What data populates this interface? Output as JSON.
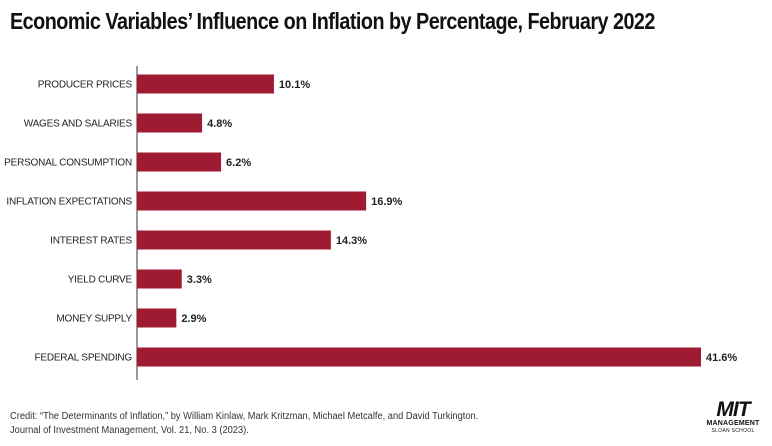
{
  "chart_data": {
    "type": "bar",
    "orientation": "horizontal",
    "title": "Economic Variables’ Influence on Inflation by Percentage, February 2022",
    "categories": [
      "PRODUCER PRICES",
      "WAGES AND SALARIES",
      "PERSONAL CONSUMPTION",
      "INFLATION EXPECTATIONS",
      "INTEREST RATES",
      "YIELD CURVE",
      "MONEY SUPPLY",
      "FEDERAL SPENDING"
    ],
    "values": [
      10.1,
      4.8,
      6.2,
      16.9,
      14.3,
      3.3,
      2.9,
      41.6
    ],
    "value_labels": [
      "10.1%",
      "4.8%",
      "6.2%",
      "16.9%",
      "14.3%",
      "3.3%",
      "2.9%",
      "41.6%"
    ],
    "unit": "%",
    "xlim": [
      0,
      41.6
    ],
    "grid": false,
    "bar_color": "#9e1b32"
  },
  "credit": {
    "line1": "Credit: “The Determinants of Inflation,” by William Kinlaw, Mark Kritzman, Michael Metcalfe, and David Turkington.",
    "line2": "Journal of Investment Management, Vol. 21, No. 3 (2023)."
  },
  "logo": {
    "mit": "MIT",
    "management": "MANAGEMENT",
    "school": "SLOAN SCHOOL"
  }
}
